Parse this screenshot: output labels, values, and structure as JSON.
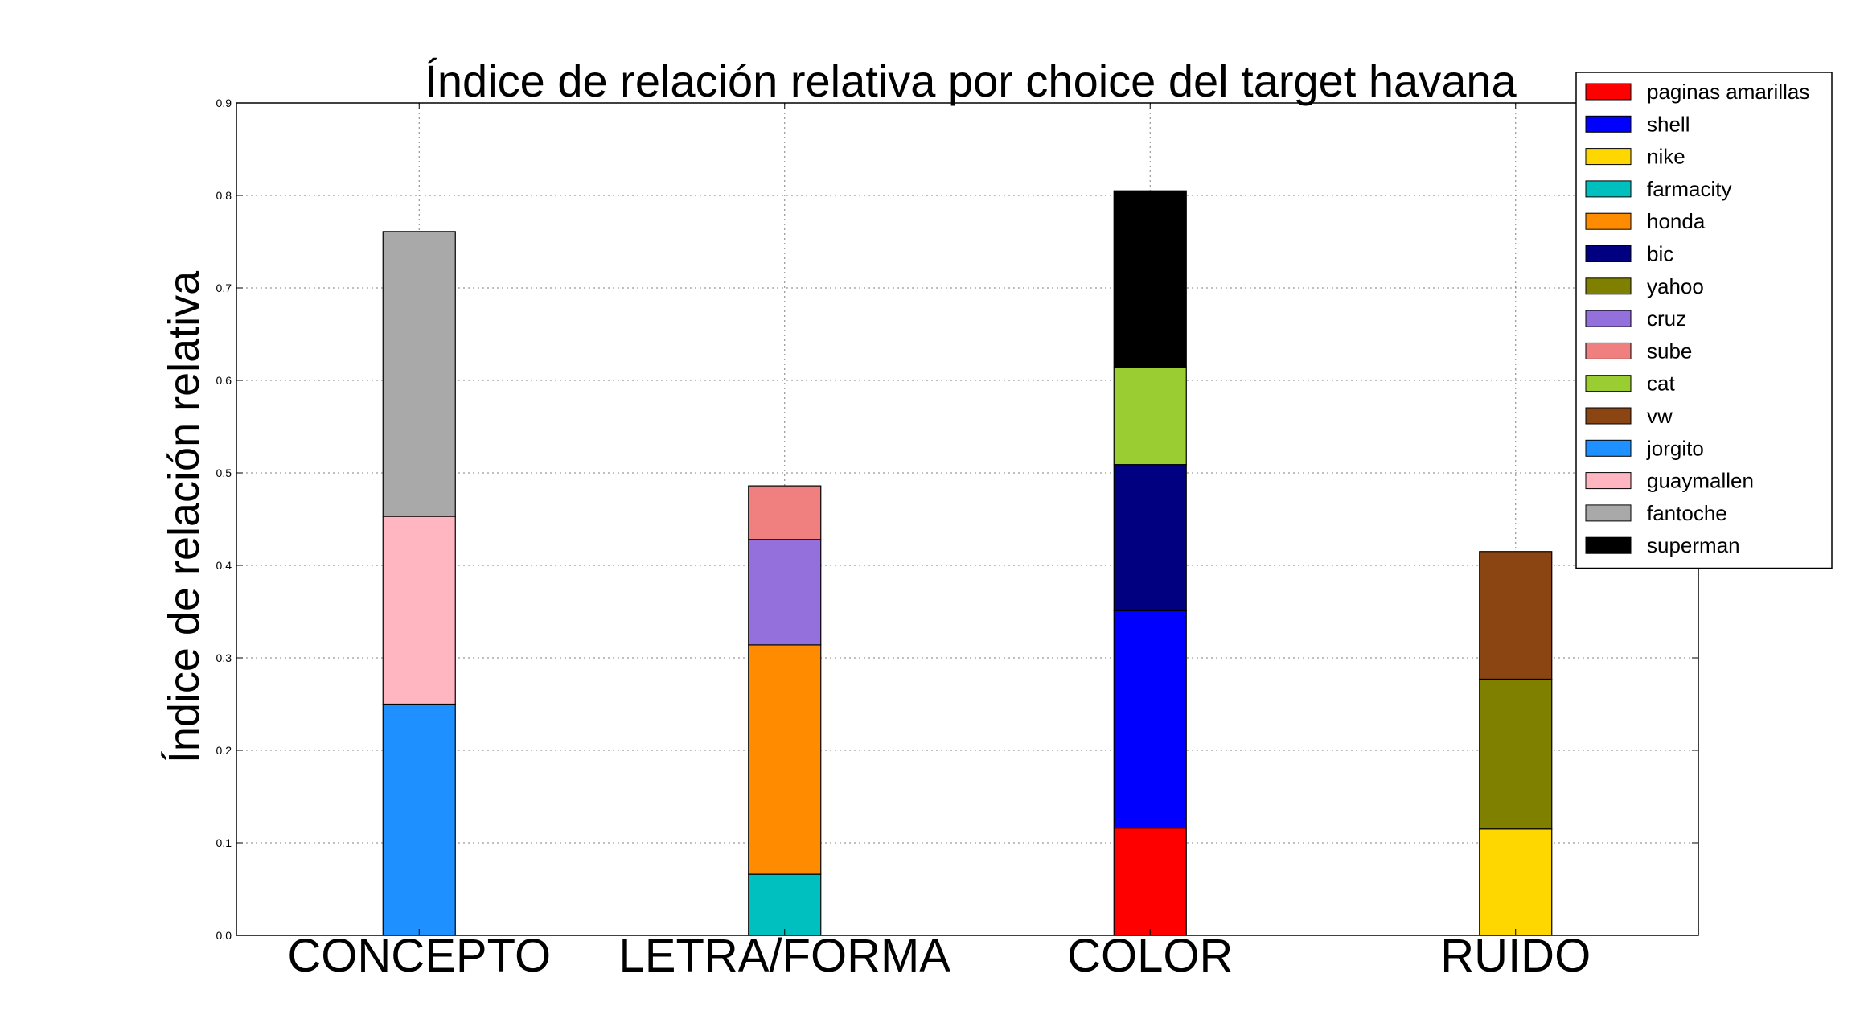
{
  "chart_data": {
    "type": "bar",
    "stacked": true,
    "title": "Índice de relación relativa por choice del target havana",
    "xlabel": "",
    "ylabel": "Índice de relación relativa",
    "ylim": [
      0,
      0.9
    ],
    "yticks": [
      "0.0",
      "0.1",
      "0.2",
      "0.3",
      "0.4",
      "0.5",
      "0.6",
      "0.7",
      "0.8",
      "0.9"
    ],
    "grid": true,
    "legend_position": "top-right",
    "categories": [
      "CONCEPTO",
      "LETRA/FORMA",
      "COLOR",
      "RUIDO"
    ],
    "series": [
      {
        "name": "paginas amarillas",
        "color": "#ff0000",
        "values": [
          0,
          0,
          0.116,
          0
        ]
      },
      {
        "name": "shell",
        "color": "#0000ff",
        "values": [
          0,
          0,
          0.235,
          0
        ]
      },
      {
        "name": "nike",
        "color": "#ffd700",
        "values": [
          0,
          0,
          0,
          0.115
        ]
      },
      {
        "name": "farmacity",
        "color": "#00bfbf",
        "values": [
          0,
          0.066,
          0,
          0
        ]
      },
      {
        "name": "honda",
        "color": "#ff8c00",
        "values": [
          0,
          0.248,
          0,
          0
        ]
      },
      {
        "name": "bic",
        "color": "#000080",
        "values": [
          0,
          0,
          0.158,
          0
        ]
      },
      {
        "name": "yahoo",
        "color": "#808000",
        "values": [
          0,
          0,
          0,
          0.162
        ]
      },
      {
        "name": "cruz",
        "color": "#9370db",
        "values": [
          0,
          0.114,
          0,
          0
        ]
      },
      {
        "name": "sube",
        "color": "#f08080",
        "values": [
          0,
          0.058,
          0,
          0
        ]
      },
      {
        "name": "cat",
        "color": "#9acd32",
        "values": [
          0,
          0,
          0.105,
          0
        ]
      },
      {
        "name": "vw",
        "color": "#8b4513",
        "values": [
          0,
          0,
          0,
          0.138
        ]
      },
      {
        "name": "jorgito",
        "color": "#1e90ff",
        "values": [
          0.25,
          0,
          0,
          0
        ]
      },
      {
        "name": "guaymallen",
        "color": "#ffb6c1",
        "values": [
          0.203,
          0,
          0,
          0
        ]
      },
      {
        "name": "fantoche",
        "color": "#a9a9a9",
        "values": [
          0.308,
          0,
          0,
          0
        ]
      },
      {
        "name": "superman",
        "color": "#000000",
        "values": [
          0,
          0,
          0.191,
          0
        ]
      }
    ]
  }
}
